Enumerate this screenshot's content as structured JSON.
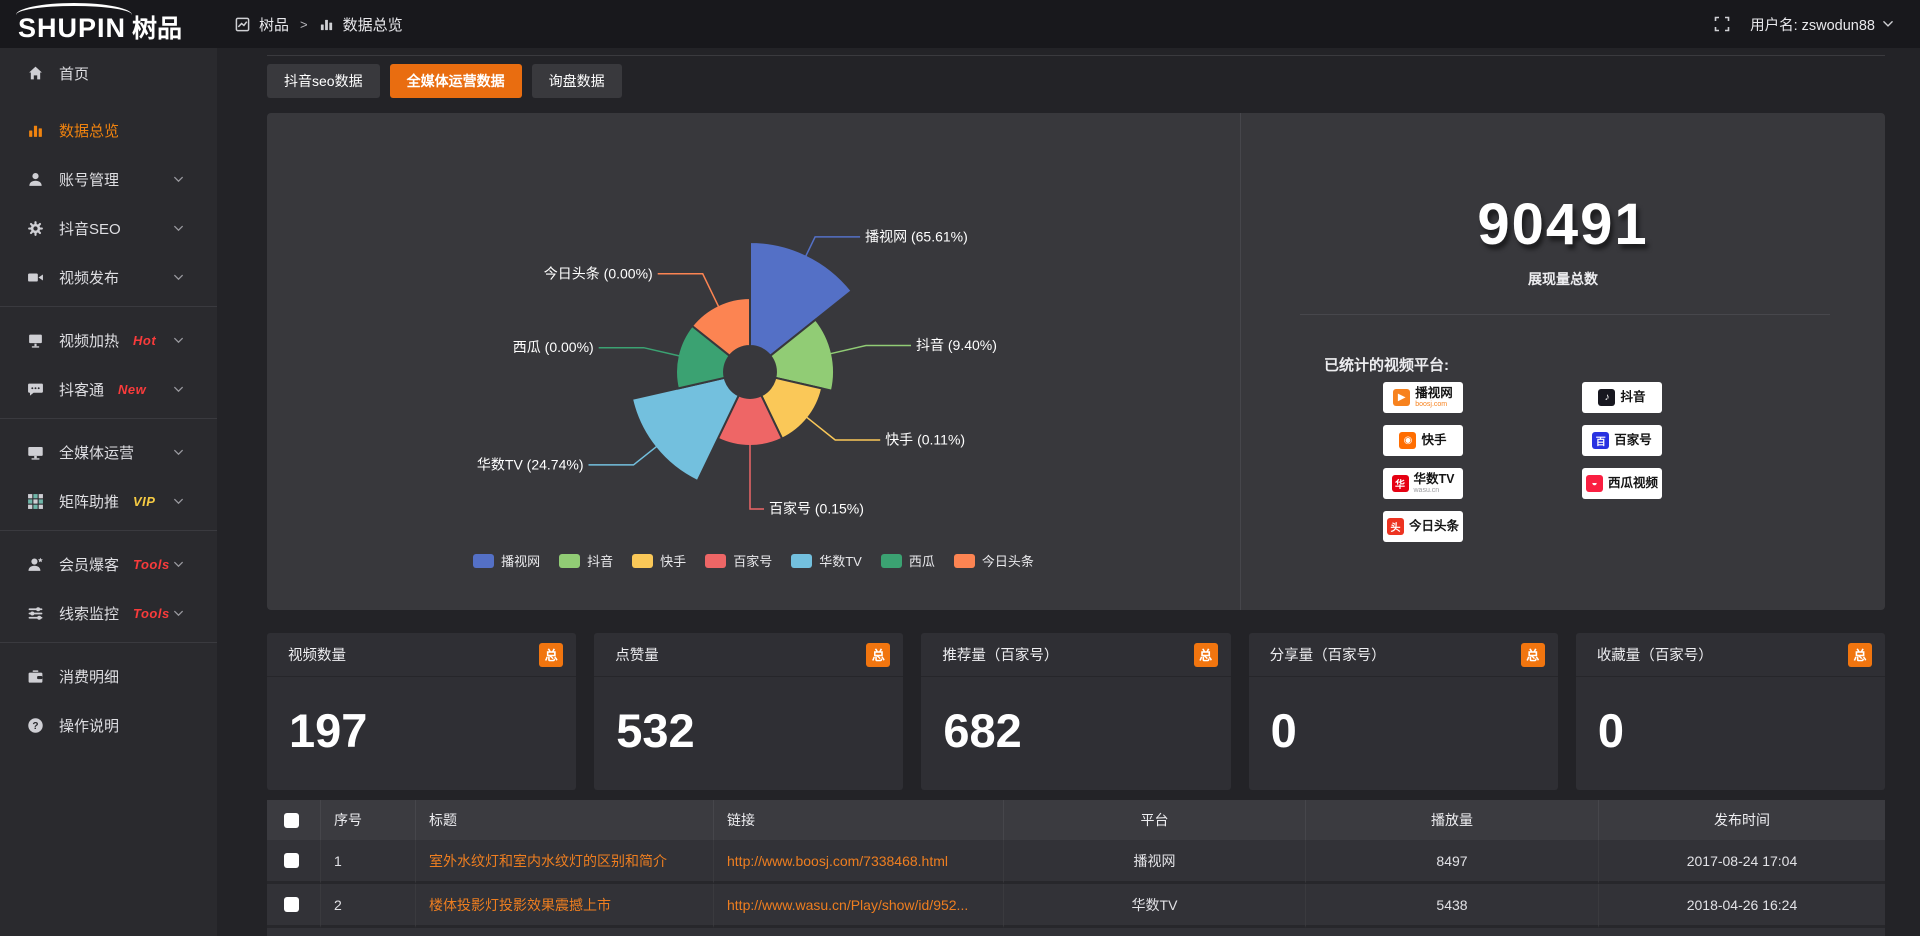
{
  "app": {
    "accent": "#ec6c10",
    "sidebar_active_color": "#f0830f",
    "link_color": "#ee7e20",
    "tag_red": "#f93b3b",
    "tag_vip_yellow": "#f6cb43"
  },
  "topbar": {
    "logo_en": "SHUPIN",
    "logo_cn": "树品",
    "breadcrumb_root": "树品",
    "breadcrumb_sep": ">",
    "breadcrumb_current": "数据总览",
    "user_label": "用户名: zswodun88"
  },
  "sidebar": {
    "items": [
      {
        "key": "home",
        "icon": "home-icon",
        "label": "首页"
      },
      {
        "key": "data-overview",
        "icon": "chart-bar-icon",
        "label": "数据总览",
        "active": true,
        "gap_top": true
      },
      {
        "key": "account-management",
        "icon": "user-icon",
        "label": "账号管理",
        "chevron": true
      },
      {
        "key": "douyin-seo",
        "icon": "gear-icon",
        "label": "抖音SEO",
        "chevron": true
      },
      {
        "key": "video-publish",
        "icon": "video-camera-icon",
        "label": "视频发布",
        "chevron": true,
        "divider_after": true
      },
      {
        "key": "video-heating",
        "icon": "screen-icon",
        "label": "视频加热",
        "tag": "Hot",
        "tag_color": "red",
        "chevron": true
      },
      {
        "key": "douketong",
        "icon": "chat-icon",
        "label": "抖客通",
        "tag": "New",
        "tag_color": "red",
        "chevron": true,
        "divider_after": true
      },
      {
        "key": "omnimedia-operation",
        "icon": "monitor-icon",
        "label": "全媒体运营",
        "chevron": true
      },
      {
        "key": "matrix-boost",
        "icon": "grid-icon",
        "label": "矩阵助推",
        "tag": "VIP",
        "tag_color": "yellow",
        "chevron": true,
        "divider_after": true
      },
      {
        "key": "member-leads",
        "icon": "member-icon",
        "label": "会员爆客",
        "tag": "Tools",
        "tag_color": "red",
        "chevron": true
      },
      {
        "key": "clue-monitor",
        "icon": "sliders-icon",
        "label": "线索监控",
        "tag": "Tools",
        "tag_color": "red",
        "chevron": true,
        "divider_after": true
      },
      {
        "key": "consumption-detail",
        "icon": "wallet-icon",
        "label": "消费明细"
      },
      {
        "key": "instructions",
        "icon": "question-icon",
        "label": "操作说明"
      }
    ]
  },
  "tabs": [
    {
      "key": "douyin-seo-data",
      "label": "抖音seo数据",
      "active": false
    },
    {
      "key": "omnimedia-data",
      "label": "全媒体运营数据",
      "active": true
    },
    {
      "key": "inquiry-data",
      "label": "询盘数据",
      "active": false
    }
  ],
  "chart_data": {
    "type": "pie",
    "subtype": "nightingale-rose",
    "items": [
      {
        "name": "播视网",
        "percent": 65.61,
        "color": "#5470c6"
      },
      {
        "name": "抖音",
        "percent": 9.4,
        "color": "#91cc75"
      },
      {
        "name": "快手",
        "percent": 0.11,
        "color": "#fac858"
      },
      {
        "name": "百家号",
        "percent": 0.15,
        "color": "#ee6666"
      },
      {
        "name": "华数TV",
        "percent": 24.74,
        "color": "#73c0de"
      },
      {
        "name": "西瓜",
        "percent": 0.0,
        "color": "#3ba272"
      },
      {
        "name": "今日头条",
        "percent": 0.0,
        "color": "#fc8452"
      }
    ],
    "label_template": "{name} ({percent}%)",
    "percent_decimals": 2,
    "legend_position": "bottom",
    "legend": [
      "播视网",
      "抖音",
      "快手",
      "百家号",
      "华数TV",
      "西瓜",
      "今日头条"
    ]
  },
  "summary": {
    "total_value": "90491",
    "total_caption": "展现量总数",
    "platforms_title": "已统计的视频平台:",
    "platforms": [
      {
        "name": "播视网",
        "sub": "boosj.com",
        "sub_color": "#f7821e",
        "brand_color": "#f7821e",
        "mark_glyph": "▶"
      },
      {
        "name": "快手",
        "brand_color": "#ff6d00",
        "mark_glyph": "◉"
      },
      {
        "name": "华数TV",
        "sub": "wasu.cn",
        "sub_color": "#9a9a9e",
        "brand_color": "#e60012",
        "mark_glyph": "华"
      },
      {
        "name": "今日头条",
        "brand_color": "#ed3321",
        "mark_glyph": "头"
      },
      {
        "name": "抖音",
        "brand_color": "#17171f",
        "mark_glyph": "♪"
      },
      {
        "name": "百家号",
        "brand_color": "#2932e1",
        "mark_glyph": "百"
      },
      {
        "name": "西瓜视频",
        "brand_color": "#fa1f41",
        "mark_glyph": "◒"
      }
    ]
  },
  "stat_cards": [
    {
      "title": "视频数量",
      "badge": "总",
      "value": "197"
    },
    {
      "title": "点赞量",
      "badge": "总",
      "value": "532"
    },
    {
      "title": "推荐量（百家号）",
      "badge": "总",
      "value": "682"
    },
    {
      "title": "分享量（百家号）",
      "badge": "总",
      "value": "0"
    },
    {
      "title": "收藏量（百家号）",
      "badge": "总",
      "value": "0"
    }
  ],
  "table": {
    "columns": [
      {
        "key": "index",
        "label": "序号"
      },
      {
        "key": "title",
        "label": "标题"
      },
      {
        "key": "link",
        "label": "链接"
      },
      {
        "key": "platform",
        "label": "平台"
      },
      {
        "key": "views",
        "label": "播放量"
      },
      {
        "key": "time",
        "label": "发布时间"
      }
    ],
    "rows": [
      {
        "index": "1",
        "title": "室外水纹灯和室内水纹灯的区别和简介",
        "link": "http://www.boosj.com/7338468.html",
        "platform": "播视网",
        "views": "8497",
        "time": "2017-08-24 17:04"
      },
      {
        "index": "2",
        "title": "楼体投影灯投影效果震撼上市",
        "link": "http://www.wasu.cn/Play/show/id/952...",
        "platform": "华数TV",
        "views": "5438",
        "time": "2018-04-26 16:24"
      }
    ]
  }
}
